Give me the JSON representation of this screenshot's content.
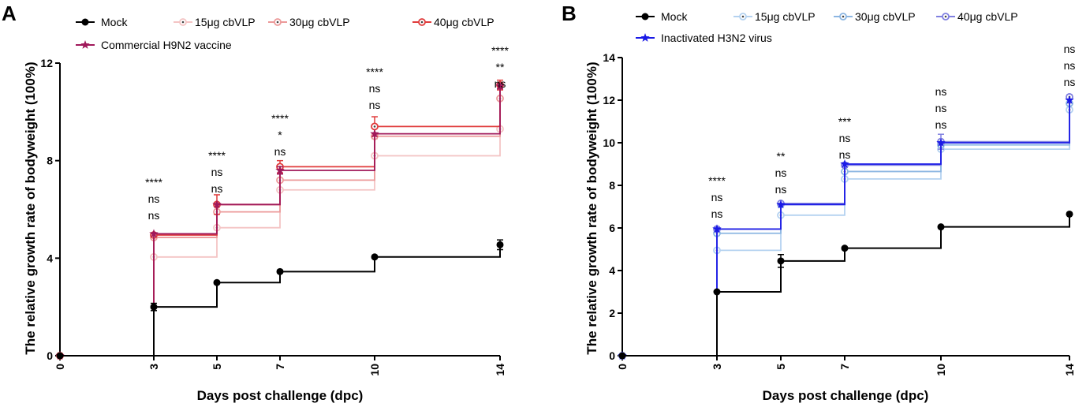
{
  "chart_data": [
    {
      "panel": "A",
      "type": "line",
      "step": true,
      "xlabel": "Days post challenge (dpc)",
      "ylabel": "The relative growth rate of bodyweight (100%)",
      "x": [
        0,
        3,
        5,
        7,
        10,
        14
      ],
      "xticks": [
        "0",
        "3",
        "5",
        "7",
        "10",
        "14"
      ],
      "ylim": [
        0,
        12
      ],
      "yticks": [
        0,
        4,
        8,
        12
      ],
      "ytick_labels": [
        "0",
        "4",
        "8",
        "12"
      ],
      "legend": {
        "placement": "top",
        "columns": 4
      },
      "series": [
        {
          "name": "Mock",
          "color": "#000000",
          "marker": "filled-circle",
          "values": [
            0,
            2.0,
            3.0,
            3.45,
            4.05,
            4.55
          ],
          "err": [
            0,
            0.15,
            0.05,
            0.05,
            0.05,
            0.2
          ]
        },
        {
          "name": "15μg cbVLP",
          "color": "#f4c4c4",
          "marker": "dot-circle",
          "values": [
            0,
            4.05,
            5.25,
            6.8,
            8.2,
            9.3
          ],
          "err": [
            0,
            0,
            0,
            0,
            0,
            0
          ]
        },
        {
          "name": "30μg cbVLP",
          "color": "#ec9a9a",
          "marker": "dot-circle",
          "values": [
            0,
            4.85,
            5.9,
            7.2,
            9.0,
            10.55
          ],
          "err": [
            0,
            0,
            0,
            0,
            0.1,
            0
          ]
        },
        {
          "name": "40μg cbVLP",
          "color": "#e03c3c",
          "marker": "dot-circle",
          "values": [
            0,
            4.95,
            6.2,
            7.75,
            9.4,
            11.1
          ],
          "err": [
            0,
            0.08,
            0.4,
            0.25,
            0.4,
            0.2
          ]
        },
        {
          "name": "Commercial H9N2 vaccine",
          "color": "#a0185a",
          "marker": "star",
          "values": [
            0,
            5.0,
            6.2,
            7.6,
            9.1,
            11.05
          ],
          "err": [
            0,
            0,
            0,
            0.15,
            0,
            0.1
          ]
        }
      ],
      "annotations": [
        {
          "x": 3,
          "labels": [
            "ns",
            "ns",
            "****"
          ]
        },
        {
          "x": 5,
          "labels": [
            "ns",
            "ns",
            "****"
          ]
        },
        {
          "x": 7,
          "labels": [
            "ns",
            "*",
            "****"
          ]
        },
        {
          "x": 10,
          "labels": [
            "ns",
            "ns",
            "****"
          ]
        },
        {
          "x": 14,
          "labels": [
            "ns",
            "**",
            "****"
          ]
        }
      ]
    },
    {
      "panel": "B",
      "type": "line",
      "step": true,
      "xlabel": "Days post challenge (dpc)",
      "ylabel": "The relative growth rate of bodyweight (100%)",
      "x": [
        0,
        3,
        5,
        7,
        10,
        14
      ],
      "xticks": [
        "0",
        "3",
        "5",
        "7",
        "10",
        "14"
      ],
      "ylim": [
        0,
        14
      ],
      "yticks": [
        0,
        2,
        4,
        6,
        8,
        10,
        12,
        14
      ],
      "ytick_labels": [
        "0",
        "2",
        "4",
        "6",
        "8",
        "10",
        "12",
        "14"
      ],
      "legend": {
        "placement": "top",
        "columns": 4
      },
      "series": [
        {
          "name": "Mock",
          "color": "#000000",
          "marker": "filled-circle",
          "values": [
            0,
            3.0,
            4.45,
            5.05,
            6.05,
            6.65
          ],
          "err": [
            0,
            0,
            0.3,
            0,
            0,
            0
          ]
        },
        {
          "name": "15μg cbVLP",
          "color": "#b4d2f0",
          "marker": "dot-circle",
          "values": [
            0,
            4.95,
            6.6,
            8.3,
            9.7,
            11.55
          ],
          "err": [
            0,
            0,
            0,
            0,
            0,
            0
          ]
        },
        {
          "name": "30μg cbVLP",
          "color": "#8cb6e2",
          "marker": "dot-circle",
          "values": [
            0,
            5.75,
            7.1,
            8.65,
            9.9,
            11.85
          ],
          "err": [
            0,
            0.1,
            0,
            0,
            0.1,
            0
          ]
        },
        {
          "name": "40μg cbVLP",
          "color": "#8080e0",
          "marker": "dot-circle",
          "values": [
            0,
            5.95,
            7.15,
            8.95,
            10.05,
            12.15
          ],
          "err": [
            0,
            0.1,
            0.05,
            0.1,
            0.35,
            0.1
          ]
        },
        {
          "name": "Inactivated H3N2 virus",
          "color": "#1a1ae6",
          "marker": "star",
          "values": [
            0,
            5.95,
            7.1,
            9.0,
            10.0,
            12.0
          ],
          "err": [
            0,
            0,
            0,
            0,
            0,
            0
          ]
        }
      ],
      "annotations": [
        {
          "x": 3,
          "labels": [
            "ns",
            "ns",
            "****"
          ]
        },
        {
          "x": 5,
          "labels": [
            "ns",
            "ns",
            "**"
          ]
        },
        {
          "x": 7,
          "labels": [
            "ns",
            "ns",
            "***"
          ]
        },
        {
          "x": 10,
          "labels": [
            "ns",
            "ns",
            "ns"
          ]
        },
        {
          "x": 14,
          "labels": [
            "ns",
            "ns",
            "ns"
          ]
        }
      ]
    }
  ]
}
